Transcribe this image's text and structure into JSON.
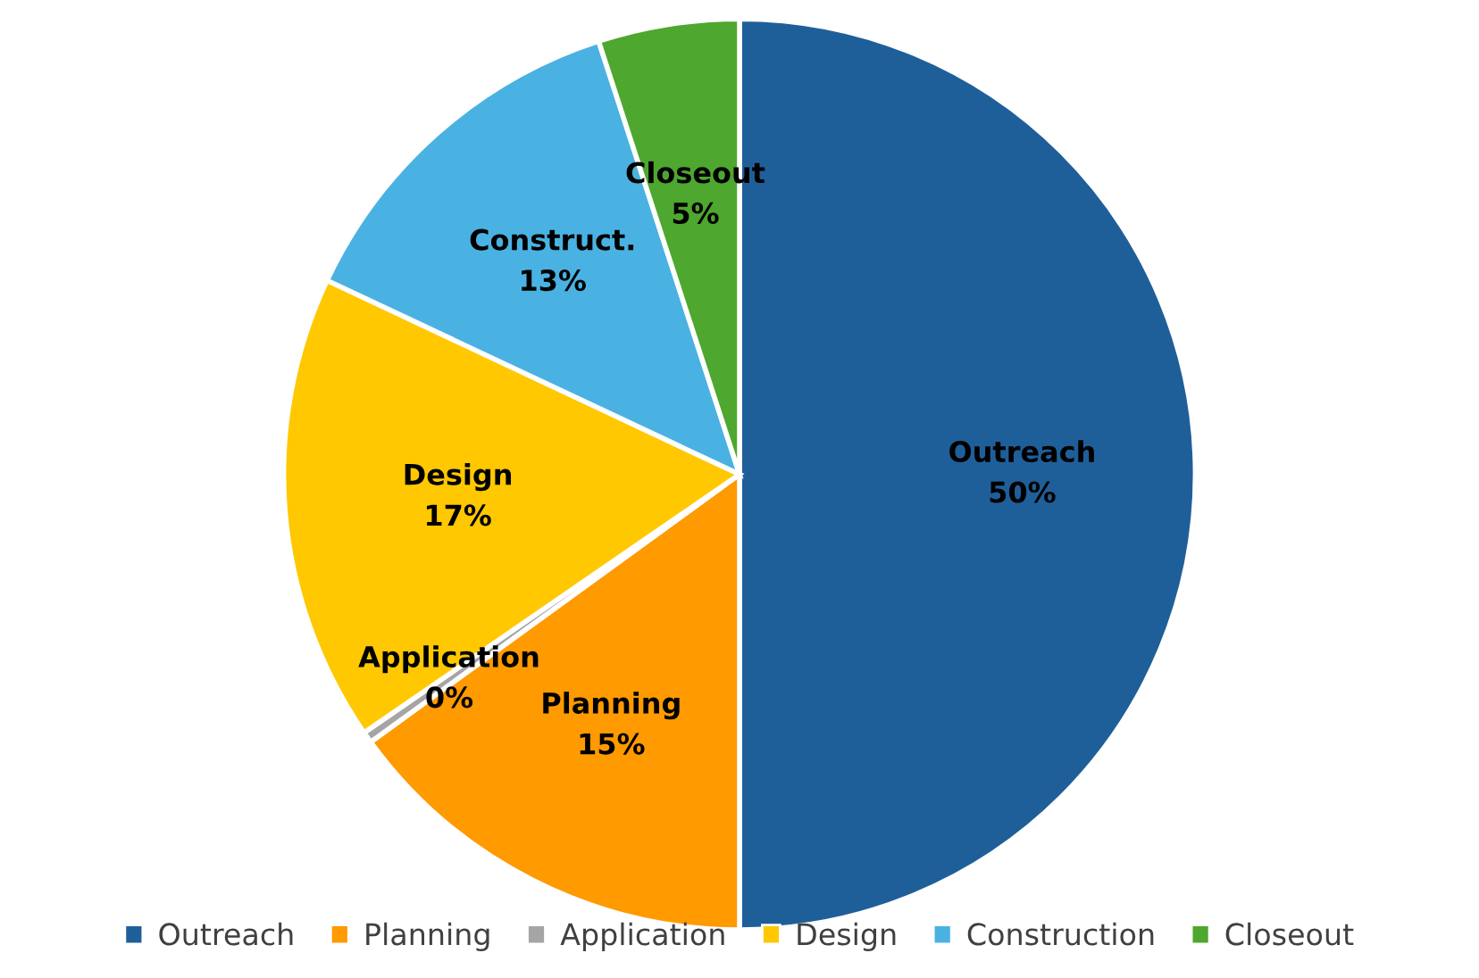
{
  "chart_data": {
    "type": "pie",
    "categories": [
      "Outreach",
      "Planning",
      "Application",
      "Design",
      "Construction",
      "Closeout"
    ],
    "values": [
      50,
      15,
      0.4,
      16.6,
      13,
      5
    ],
    "colors": [
      "#1f5f99",
      "#ff9a00",
      "#a5a5a5",
      "#ffc800",
      "#4ab2e2",
      "#4ea72e"
    ],
    "value_labels": [
      "Outreach\n50%",
      "Planning\n15%",
      "Application\n0%",
      "Design\n17%",
      "Construct.\n13%",
      "Closeout\n5%"
    ],
    "legend": "bottom"
  }
}
